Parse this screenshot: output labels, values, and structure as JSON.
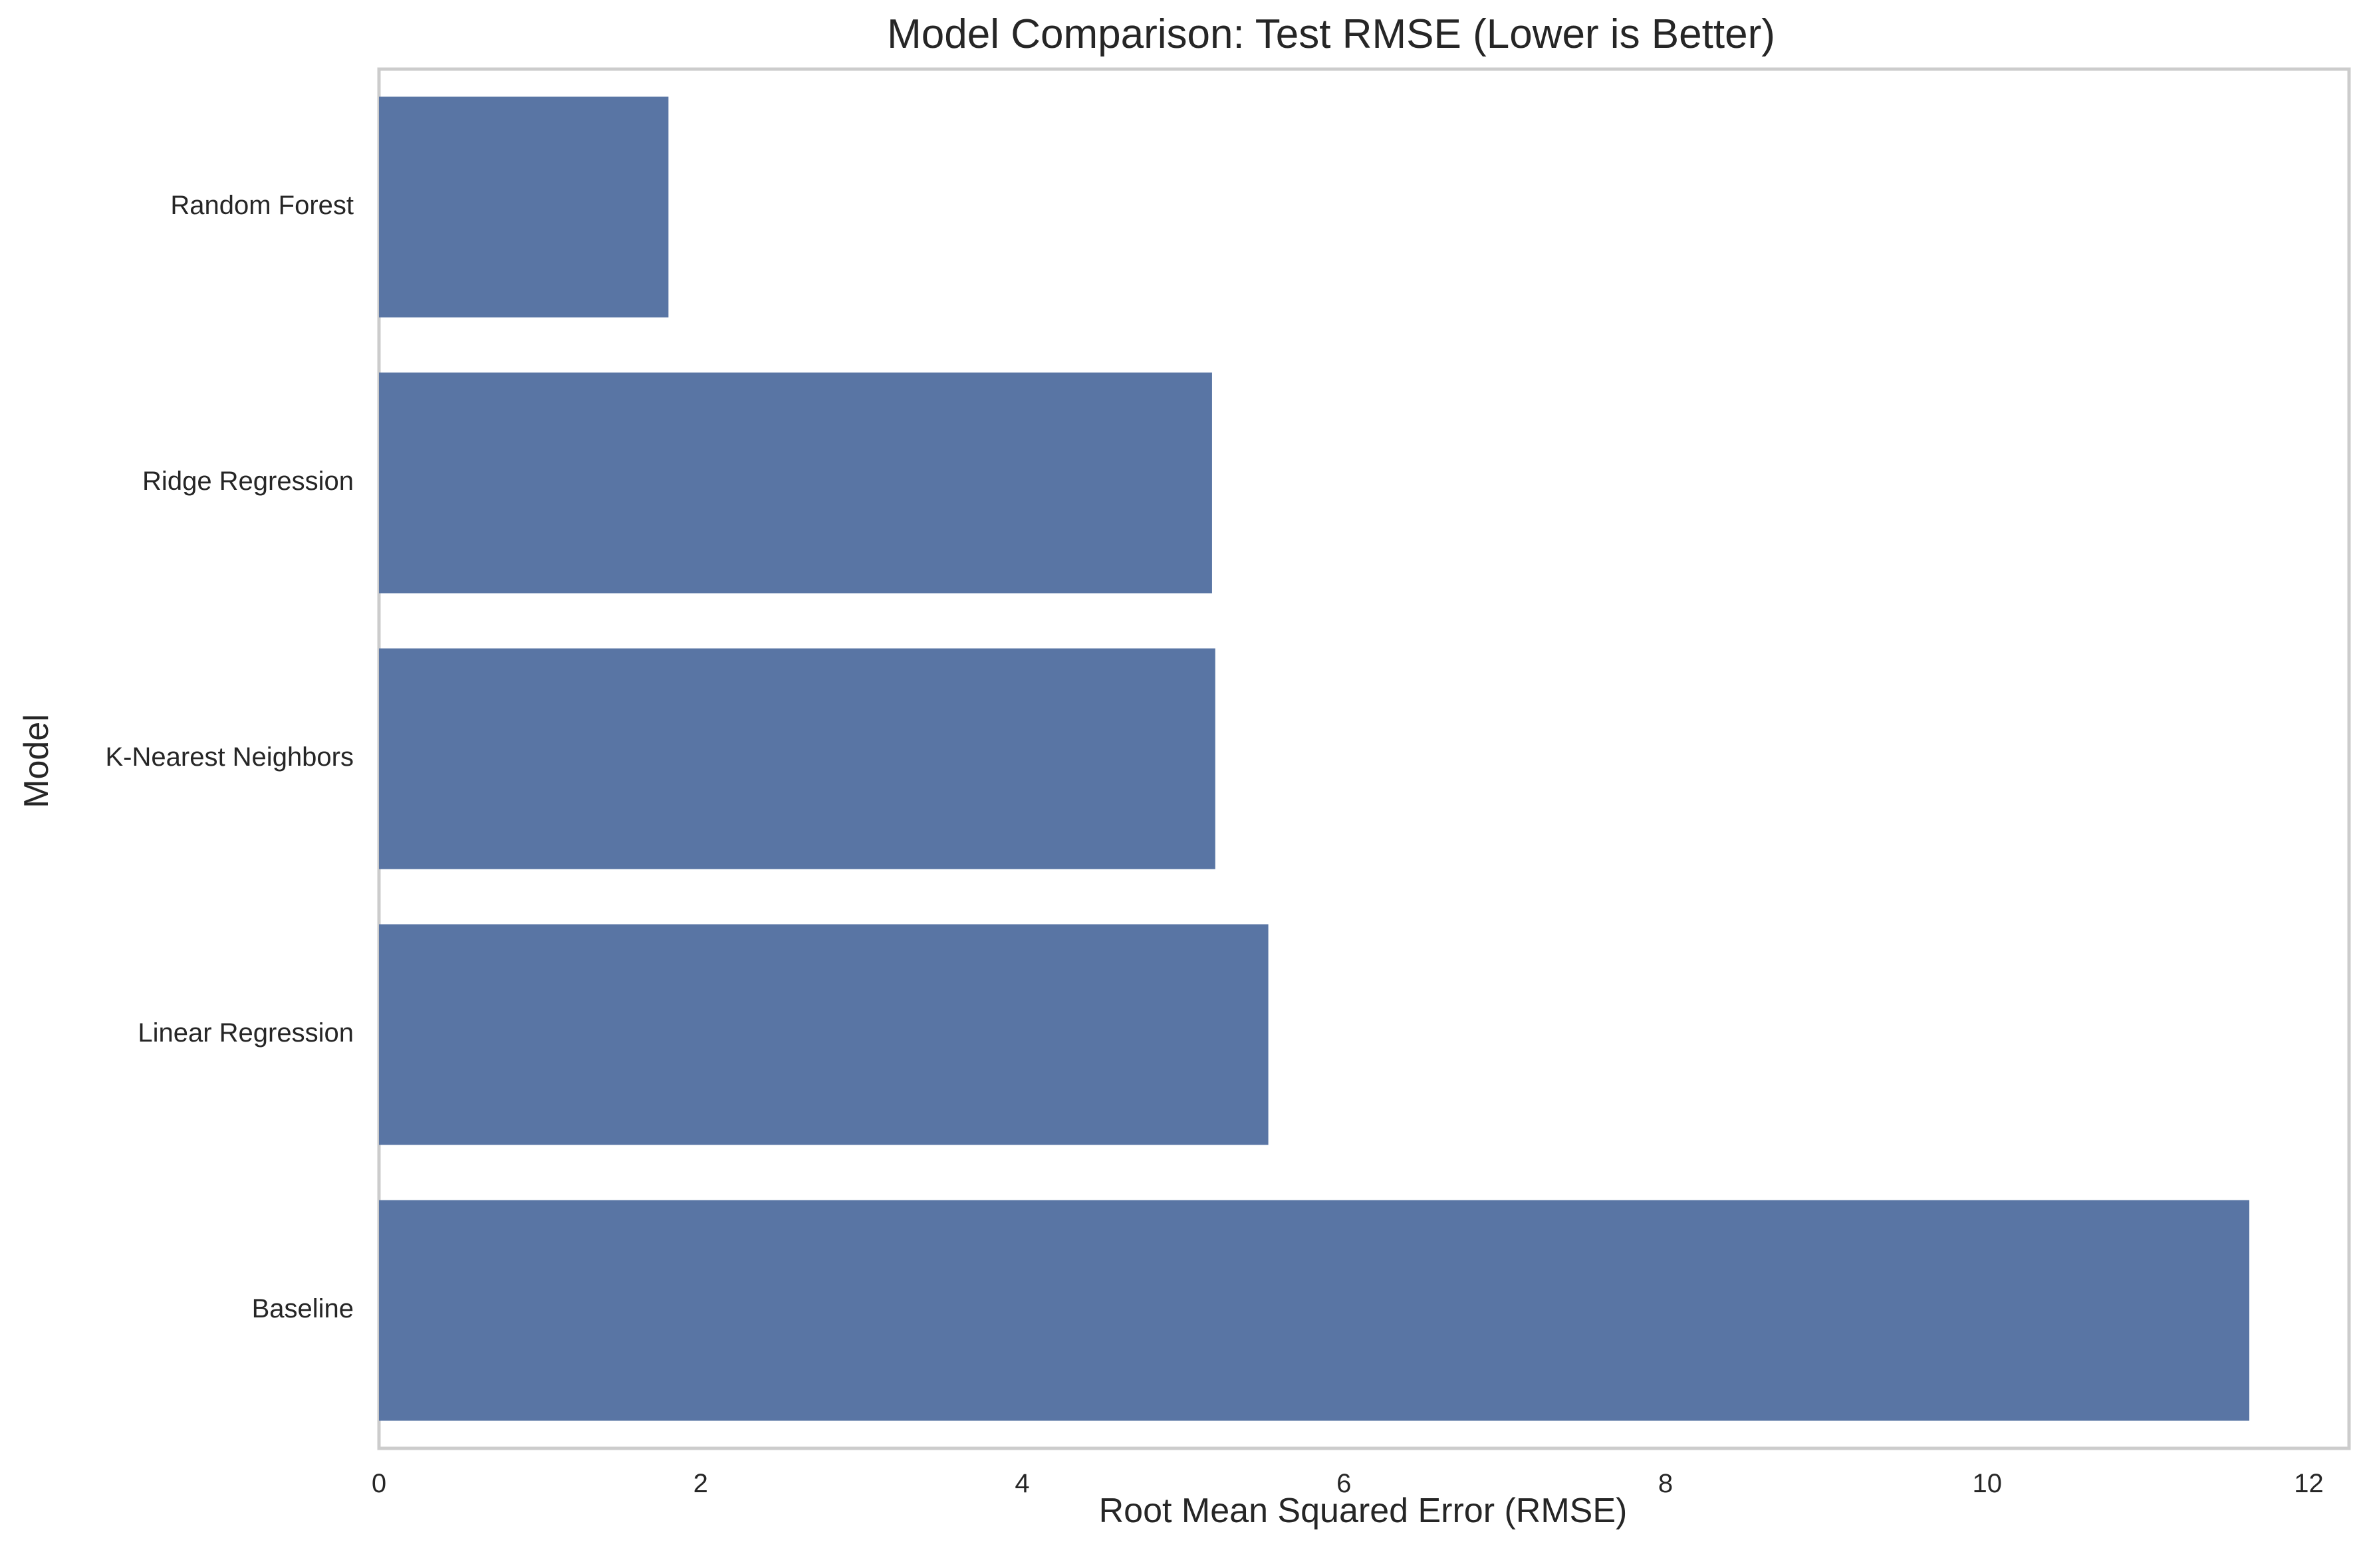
{
  "chart_data": {
    "type": "bar",
    "orientation": "horizontal",
    "title": "Model Comparison: Test RMSE (Lower is Better)",
    "xlabel": "Root Mean Squared Error (RMSE)",
    "ylabel": "Model",
    "categories": [
      "Random Forest",
      "Ridge Regression",
      "K-Nearest Neighbors",
      "Linear Regression",
      "Baseline"
    ],
    "values": [
      1.8,
      5.18,
      5.2,
      5.53,
      11.63
    ],
    "xlim": [
      0,
      12.25
    ],
    "xticks": [
      0,
      2,
      4,
      6,
      8,
      10,
      12
    ],
    "grid": false,
    "legend": "none",
    "colors": {
      "bar": "#5975a4",
      "axes_edge": "#cccccc",
      "text": "#262626",
      "background": "#ffffff"
    }
  }
}
